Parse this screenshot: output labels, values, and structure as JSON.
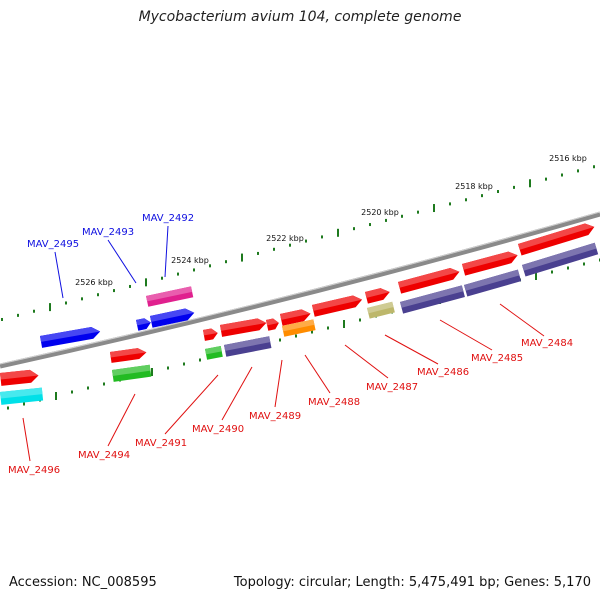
{
  "title": "Mycobacterium avium 104, complete genome",
  "footer": {
    "accession": "Accession: NC_008595",
    "summary": "Topology: circular; Length: 5,475,491 bp; Genes: 5,170"
  },
  "colors": {
    "backbone": "#8a8a8a",
    "ticks": "#1e7a1e",
    "forward_label": "#1010e0",
    "reverse_label": "#e01010",
    "red": "#ee0000",
    "blue": "#0000ee",
    "navy": "#4a4090",
    "green": "#22bb22",
    "magenta": "#e0208e",
    "cyan": "#00e0e8",
    "orange": "#ff8c00",
    "olive": "#bdb76b"
  },
  "ticks": [
    "2516 kbp",
    "2518 kbp",
    "2520 kbp",
    "2522 kbp",
    "2524 kbp",
    "2526 kbp"
  ],
  "genes": [
    {
      "label": "MAV_2484",
      "strand": "reverse"
    },
    {
      "label": "MAV_2485",
      "strand": "reverse"
    },
    {
      "label": "MAV_2486",
      "strand": "reverse"
    },
    {
      "label": "MAV_2487",
      "strand": "reverse"
    },
    {
      "label": "MAV_2488",
      "strand": "reverse"
    },
    {
      "label": "MAV_2489",
      "strand": "reverse"
    },
    {
      "label": "MAV_2490",
      "strand": "reverse"
    },
    {
      "label": "MAV_2491",
      "strand": "reverse"
    },
    {
      "label": "MAV_2492",
      "strand": "forward"
    },
    {
      "label": "MAV_2493",
      "strand": "forward"
    },
    {
      "label": "MAV_2494",
      "strand": "reverse"
    },
    {
      "label": "MAV_2495",
      "strand": "forward"
    },
    {
      "label": "MAV_2496",
      "strand": "reverse"
    }
  ]
}
